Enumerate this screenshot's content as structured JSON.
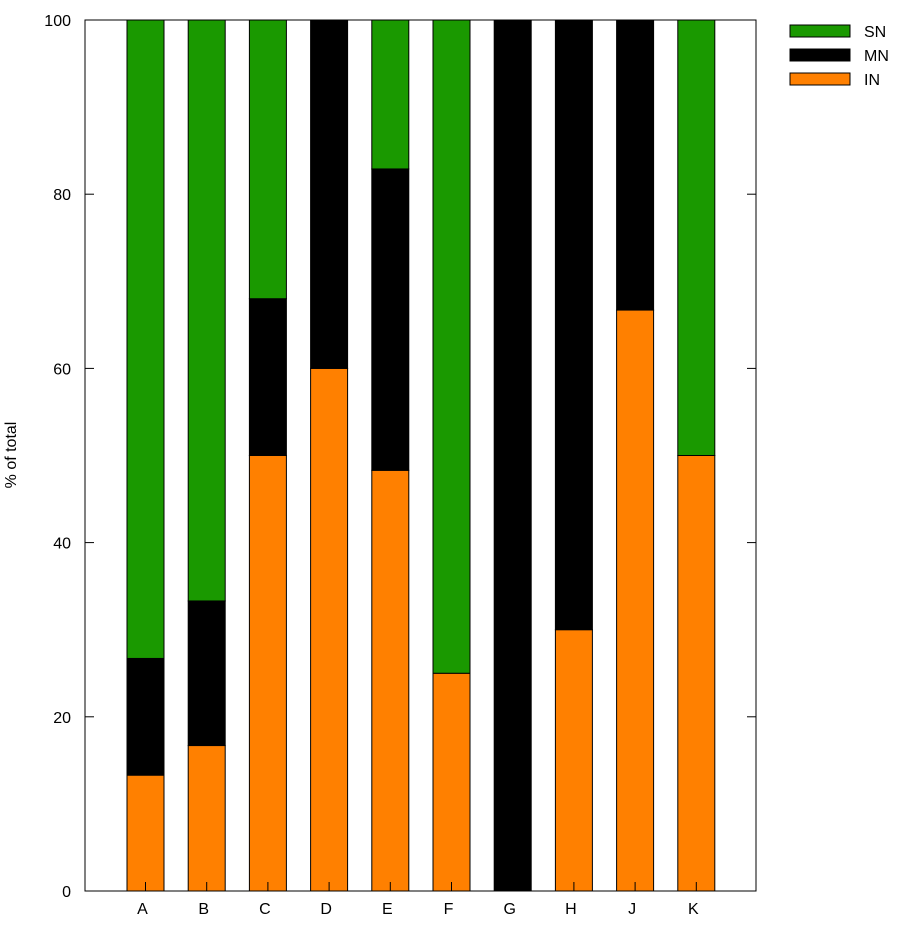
{
  "chart_data": {
    "type": "bar",
    "stacked": true,
    "title": "",
    "xlabel": "",
    "ylabel": "% of total",
    "ylim": [
      0,
      100
    ],
    "yticks": [
      0,
      20,
      40,
      60,
      80,
      100
    ],
    "grid": false,
    "legend_position": "top-right",
    "categories": [
      "A",
      "B",
      "C",
      "D",
      "E",
      "F",
      "G",
      "H",
      "J",
      "K"
    ],
    "series": [
      {
        "name": "IN",
        "color": "#ff8000",
        "values": [
          13.3,
          16.7,
          50,
          60,
          48.3,
          25,
          0,
          30,
          66.7,
          50
        ]
      },
      {
        "name": "MN",
        "color": "#000000",
        "values": [
          13.4,
          16.6,
          18,
          40,
          34.6,
          0,
          100,
          70,
          33.3,
          0
        ]
      },
      {
        "name": "SN",
        "color": "#1a9900",
        "values": [
          73.3,
          66.7,
          32,
          0,
          17.1,
          75,
          0,
          0,
          0,
          50
        ]
      }
    ],
    "legend_order": [
      "SN",
      "MN",
      "IN"
    ]
  }
}
